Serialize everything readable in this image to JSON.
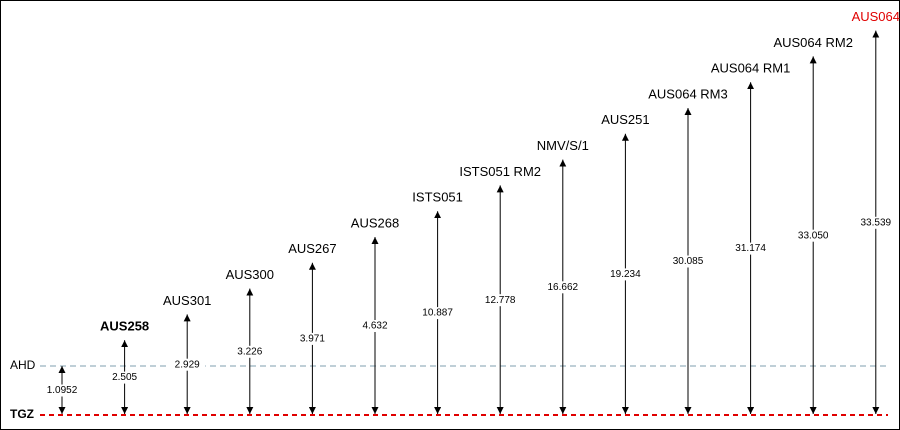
{
  "datums": [
    {
      "label": "AHD",
      "color": "#7f9faf"
    },
    {
      "label": "TGZ",
      "color": "#e00000",
      "bold": true
    }
  ],
  "marks": [
    {
      "height": "1.0952"
    },
    {
      "label": "AUS258",
      "height": "2.505",
      "bold": true
    },
    {
      "label": "AUS301",
      "height": "2.929"
    },
    {
      "label": "AUS300",
      "height": "3.226"
    },
    {
      "label": "AUS267",
      "height": "3.971"
    },
    {
      "label": "AUS268",
      "height": "4.632"
    },
    {
      "label": "ISTS051",
      "height": "10.887"
    },
    {
      "label": "ISTS051 RM2",
      "height": "12.778"
    },
    {
      "label": "NMV/S/1",
      "height": "16.662"
    },
    {
      "label": "AUS251",
      "height": "19.234"
    },
    {
      "label": "AUS064 RM3",
      "height": "30.085"
    },
    {
      "label": "AUS064 RM1",
      "height": "31.174"
    },
    {
      "label": "AUS064 RM2",
      "height": "33.050"
    },
    {
      "label": "AUS064",
      "height": "33.539",
      "color": "#e00000"
    }
  ]
}
